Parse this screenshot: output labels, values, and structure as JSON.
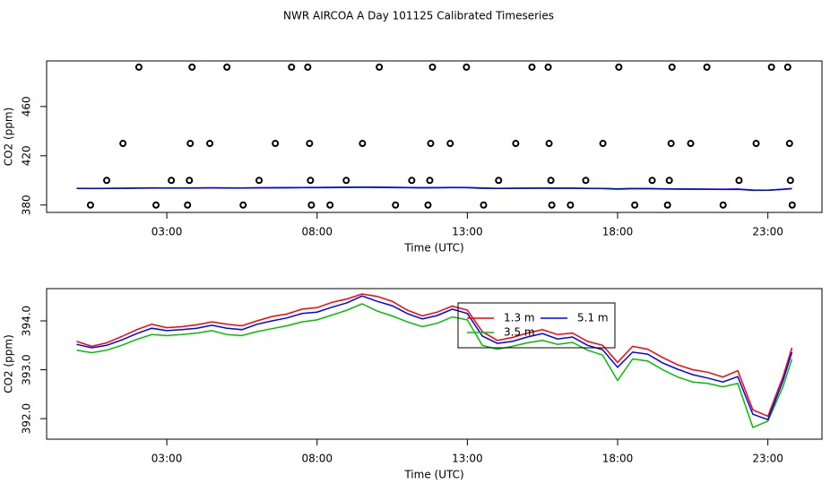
{
  "chart_data": [
    {
      "type": "scatter",
      "title": "NWR AIRCOA A  Day 101125  Calibrated Timeseries",
      "x_label": "Time (UTC)",
      "y_label": "CO2 (ppm)",
      "color": "#000000",
      "xlim": [
        -1,
        24.8
      ],
      "ylim": [
        374,
        497
      ],
      "xticks": [
        {
          "value": 3,
          "label": "03:00"
        },
        {
          "value": 8,
          "label": "08:00"
        },
        {
          "value": 13,
          "label": "13:00"
        },
        {
          "value": 18,
          "label": "18:00"
        },
        {
          "value": 23,
          "label": "23:00"
        }
      ],
      "yticks": [
        380,
        420,
        460
      ],
      "x": [
        2.07,
        3.84,
        5.0,
        7.15,
        7.69,
        10.07,
        11.84,
        12.97,
        15.15,
        15.69,
        18.04,
        19.81,
        20.97,
        23.12,
        23.66,
        1.54,
        3.78,
        4.43,
        6.61,
        7.75,
        9.51,
        11.78,
        12.43,
        14.61,
        15.72,
        17.51,
        19.78,
        20.43,
        22.61,
        23.72,
        1.0,
        3.15,
        3.75,
        6.07,
        7.78,
        8.97,
        11.15,
        11.75,
        14.04,
        15.78,
        16.94,
        19.15,
        19.72,
        22.04,
        23.75,
        0.46,
        2.64,
        3.69,
        5.54,
        7.81,
        8.43,
        10.61,
        11.69,
        13.54,
        15.81,
        16.43,
        18.57,
        19.66,
        21.51,
        23.81
      ],
      "values": [
        492,
        492,
        492,
        492,
        492,
        492,
        492,
        492,
        492,
        492,
        492,
        492,
        492,
        492,
        492,
        430,
        430,
        430,
        430,
        430,
        430,
        430,
        430,
        430,
        430,
        430,
        430,
        430,
        430,
        430,
        400,
        400,
        400,
        400,
        400,
        400,
        400,
        400,
        400,
        400,
        400,
        400,
        400,
        400,
        400,
        380,
        380,
        380,
        380,
        380,
        380,
        380,
        380,
        380,
        380,
        380,
        380,
        380,
        380,
        380
      ]
    },
    {
      "type": "line",
      "x_label": "Time (UTC)",
      "y_label": "CO2 (ppm)",
      "xlim": [
        -1,
        24.8
      ],
      "ylim": [
        391.58,
        394.66
      ],
      "xticks": [
        {
          "value": 3,
          "label": "03:00"
        },
        {
          "value": 8,
          "label": "08:00"
        },
        {
          "value": 13,
          "label": "13:00"
        },
        {
          "value": 18,
          "label": "18:00"
        },
        {
          "value": 23,
          "label": "23:00"
        }
      ],
      "yticks": [
        {
          "value": 392,
          "label": "392.0"
        },
        {
          "value": 393,
          "label": "393.0"
        },
        {
          "value": 394,
          "label": "394.0"
        }
      ],
      "legend": "top",
      "x": [
        0,
        0.5,
        1,
        1.5,
        2,
        2.5,
        3,
        3.5,
        4,
        4.5,
        5,
        5.5,
        6,
        6.5,
        7,
        7.5,
        8,
        8.5,
        9,
        9.5,
        10,
        10.5,
        11,
        11.5,
        12,
        12.5,
        13,
        13.5,
        14,
        14.5,
        15,
        15.5,
        16,
        16.5,
        17,
        17.5,
        18,
        18.5,
        19,
        19.5,
        20,
        20.5,
        21,
        21.5,
        22,
        22.5,
        23,
        23.5,
        23.8
      ],
      "series": [
        {
          "name": "1.3 m",
          "color": "#ff0000",
          "values": [
            393.58,
            393.48,
            393.55,
            393.68,
            393.82,
            393.93,
            393.86,
            393.88,
            393.92,
            393.98,
            393.93,
            393.9,
            394.0,
            394.09,
            394.14,
            394.24,
            394.27,
            394.38,
            394.45,
            394.55,
            394.5,
            394.4,
            394.22,
            394.1,
            394.18,
            394.3,
            394.22,
            393.78,
            393.6,
            393.66,
            393.75,
            393.82,
            393.72,
            393.75,
            393.58,
            393.5,
            393.15,
            393.48,
            393.42,
            393.25,
            393.1,
            393.0,
            392.95,
            392.85,
            392.98,
            392.18,
            392.05,
            392.85,
            393.45
          ]
        },
        {
          "name": "5.1 m",
          "color": "#0000ff",
          "values": [
            393.52,
            393.45,
            393.5,
            393.61,
            393.74,
            393.85,
            393.8,
            393.82,
            393.85,
            393.91,
            393.85,
            393.82,
            393.93,
            394.0,
            394.06,
            394.15,
            394.18,
            394.28,
            394.37,
            394.51,
            394.4,
            394.31,
            394.15,
            394.04,
            394.11,
            394.24,
            394.15,
            393.69,
            393.54,
            393.58,
            393.67,
            393.74,
            393.63,
            393.67,
            393.5,
            393.41,
            393.05,
            393.36,
            393.32,
            393.14,
            393.01,
            392.9,
            392.83,
            392.75,
            392.86,
            392.09,
            391.98,
            392.77,
            393.36
          ]
        },
        {
          "name": "3.5 m",
          "color": "#00c000",
          "values": [
            393.4,
            393.35,
            393.4,
            393.5,
            393.62,
            393.72,
            393.7,
            393.72,
            393.75,
            393.8,
            393.72,
            393.7,
            393.78,
            393.84,
            393.9,
            393.98,
            394.02,
            394.12,
            394.22,
            394.35,
            394.2,
            394.1,
            393.98,
            393.88,
            393.95,
            394.08,
            394.02,
            393.5,
            393.42,
            393.48,
            393.55,
            393.6,
            393.52,
            393.56,
            393.4,
            393.3,
            392.78,
            393.22,
            393.18,
            393.0,
            392.85,
            392.75,
            392.72,
            392.65,
            392.72,
            391.82,
            391.95,
            392.65,
            393.22
          ]
        }
      ]
    }
  ]
}
